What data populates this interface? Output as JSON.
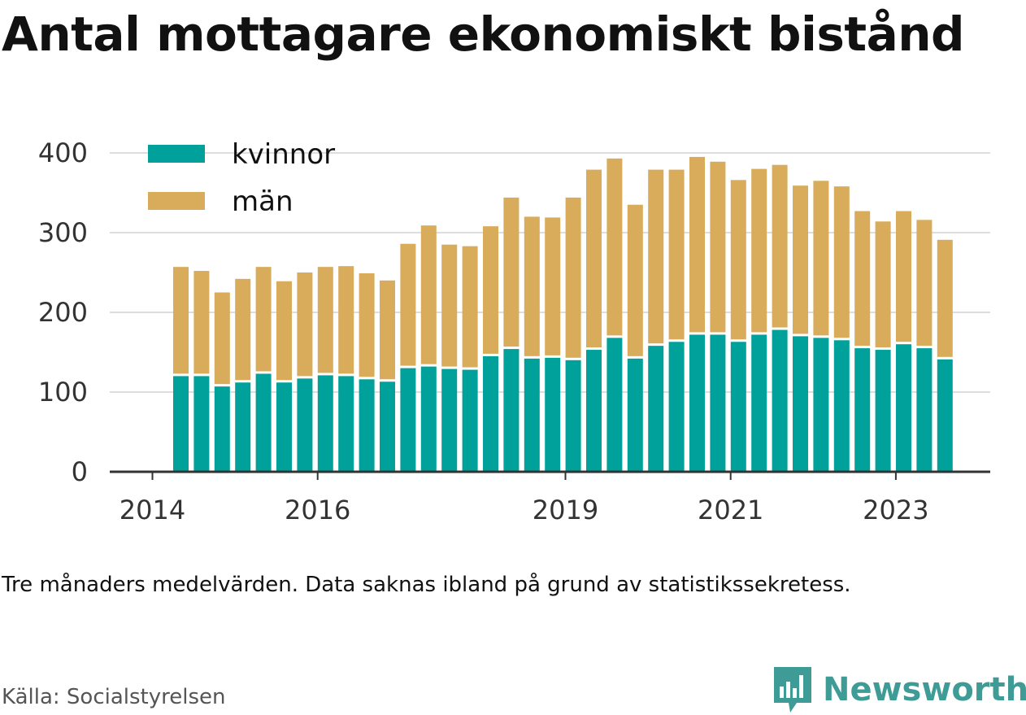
{
  "title": "Antal mottagare ekonomiskt bistånd",
  "note": "Tre månaders medelvärden. Data saknas ibland på grund av statistikssekretess.",
  "source": "Källa: Socialstyrelsen",
  "brand": {
    "name": "Newsworthy",
    "icon": "newsworthy-logo-icon",
    "color": "#3e9b96"
  },
  "colors": {
    "kvinnor": "#00a19a",
    "man": "#d9ac5b",
    "grid": "#dddddd",
    "axis": "#333333"
  },
  "chart_data": {
    "type": "bar",
    "stacked": true,
    "ylim": [
      0,
      420
    ],
    "yticks": [
      0,
      100,
      200,
      300,
      400
    ],
    "xticks": [
      {
        "label": "2014",
        "pos": 0
      },
      {
        "label": "2016",
        "pos": 8
      },
      {
        "label": "2019",
        "pos": 20
      },
      {
        "label": "2021",
        "pos": 28
      },
      {
        "label": "2023",
        "pos": 36
      }
    ],
    "legend_position": "top-left",
    "grid": true,
    "series": [
      {
        "name": "kvinnor",
        "values": [
          120,
          120,
          107,
          112,
          123,
          112,
          117,
          121,
          120,
          116,
          113,
          130,
          132,
          129,
          128,
          145,
          154,
          142,
          143,
          140,
          153,
          168,
          142,
          158,
          163,
          172,
          172,
          163,
          172,
          178,
          170,
          168,
          165,
          155,
          153,
          160,
          155,
          141
        ]
      },
      {
        "name": "män",
        "values": [
          137,
          132,
          118,
          130,
          134,
          127,
          133,
          136,
          138,
          133,
          127,
          156,
          177,
          156,
          155,
          163,
          190,
          178,
          176,
          204,
          226,
          225,
          193,
          221,
          216,
          223,
          217,
          203,
          208,
          207,
          189,
          197,
          193,
          172,
          161,
          167,
          161,
          150
        ]
      }
    ]
  }
}
